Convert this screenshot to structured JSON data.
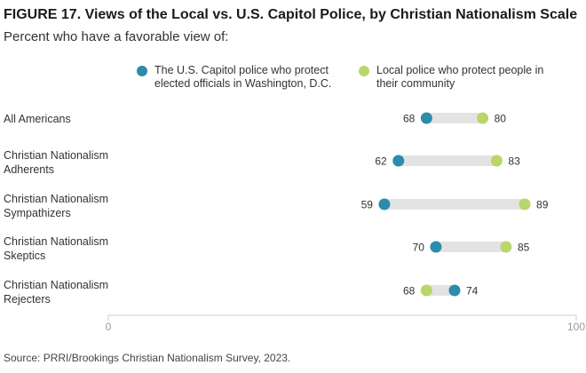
{
  "title": "FIGURE 17. Views of the Local vs. U.S. Capitol Police, by Christian Nationalism Scale",
  "subtitle": "Percent who have a favorable view of:",
  "source": "Source: PRRI/Brookings Christian Nationalism Survey, 2023.",
  "colors": {
    "capitol": "#2b8cab",
    "local": "#b9d66a",
    "track": "#e3e3e3",
    "axis": "#cccccc"
  },
  "chart_data": {
    "type": "dumbbell",
    "xlim": [
      0,
      100
    ],
    "x_ticks": [
      "0",
      "100"
    ],
    "legend_placement": "top",
    "series": [
      {
        "name": "The U.S. Capitol police who protect\nelected officials in Washington, D.C.",
        "color": "#2b8cab"
      },
      {
        "name": "Local police who protect people in\ntheir community",
        "color": "#b9d66a"
      }
    ],
    "categories": [
      "All Americans",
      "Christian Nationalism\nAdherents",
      "Christian Nationalism\nSympathizers",
      "Christian Nationalism\nSkeptics",
      "Christian Nationalism\nRejecters"
    ],
    "capitol": [
      68,
      62,
      59,
      70,
      74
    ],
    "local": [
      80,
      83,
      89,
      85,
      68
    ]
  }
}
